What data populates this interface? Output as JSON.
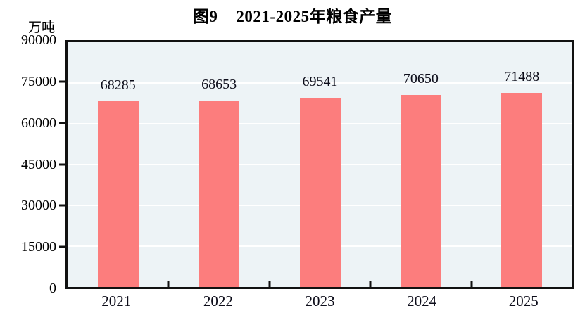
{
  "chart_data": {
    "type": "bar",
    "title": "图9　2021-2025年粮食产量",
    "title_prefix": "图9",
    "title_text": "2021-2025年粮食产量",
    "unit_label": "万吨",
    "categories": [
      "2021",
      "2022",
      "2023",
      "2024",
      "2025"
    ],
    "values": [
      68285,
      68653,
      69541,
      70650,
      71488
    ],
    "value_labels": [
      "68285",
      "68653",
      "69541",
      "70650",
      "71488"
    ],
    "y_ticks": [
      0,
      15000,
      30000,
      45000,
      60000,
      75000,
      90000
    ],
    "ylim": [
      0,
      90000
    ],
    "xlabel": "",
    "ylabel": "万吨",
    "grid": true,
    "legend_position": "none",
    "colors": {
      "bar": "#FC7D7D",
      "plot_background": "#EDF3F6",
      "gridline": "#FFFFFF",
      "axis_frame": "#111111",
      "text": "#000000",
      "page_background": "#FFFFFF"
    }
  }
}
